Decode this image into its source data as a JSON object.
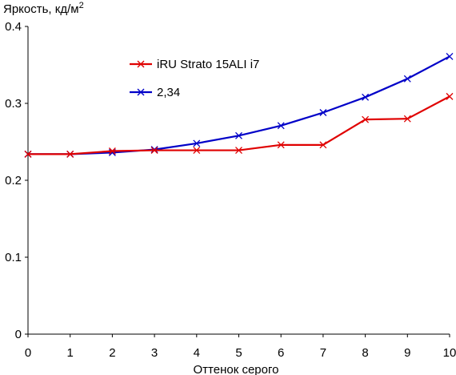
{
  "chart_data": {
    "type": "line",
    "ylabel": "Яркость, кд/м",
    "ylabel_sup": "2",
    "xlabel": "Оттенок серого",
    "xlim": [
      0,
      10
    ],
    "ylim": [
      0,
      0.4
    ],
    "x_ticks": [
      "0",
      "1",
      "2",
      "3",
      "4",
      "5",
      "6",
      "7",
      "8",
      "9",
      "10"
    ],
    "y_ticks": [
      "0",
      "0.1",
      "0.2",
      "0.3",
      "0.4"
    ],
    "grid": false,
    "legend_position": "top-center",
    "x": [
      0,
      1,
      2,
      3,
      4,
      5,
      6,
      7,
      8,
      9,
      10
    ],
    "series": [
      {
        "name": "iRU Strato 15ALI i7",
        "color": "#e00000",
        "marker": "x",
        "values": [
          0.234,
          0.234,
          0.238,
          0.239,
          0.239,
          0.239,
          0.246,
          0.246,
          0.279,
          0.28,
          0.309
        ]
      },
      {
        "name": "2,34",
        "color": "#0000c8",
        "marker": "x",
        "values": [
          0.234,
          0.234,
          0.236,
          0.24,
          0.248,
          0.258,
          0.271,
          0.288,
          0.308,
          0.332,
          0.361
        ]
      }
    ]
  }
}
